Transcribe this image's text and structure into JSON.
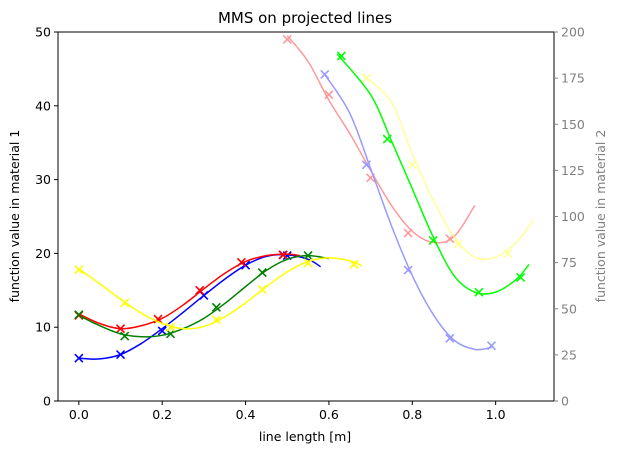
{
  "chart_data": {
    "type": "line",
    "title": "MMS on projected lines",
    "xlabel": "line length [m]",
    "ylabel_left": "function value in material 1",
    "ylabel_right": "function value in material 2",
    "xlim": [
      -0.05,
      1.14
    ],
    "ylim_left": [
      0,
      50
    ],
    "ylim_right": [
      0,
      200
    ],
    "x_ticks": [
      "0.0",
      "0.2",
      "0.4",
      "0.6",
      "0.8",
      "1.0"
    ],
    "y_ticks_left": [
      "0",
      "10",
      "20",
      "30",
      "40",
      "50"
    ],
    "y_ticks_right": [
      "0",
      "25",
      "50",
      "75",
      "100",
      "125",
      "150",
      "175",
      "200"
    ],
    "grid": false,
    "series": [
      {
        "axis": "left",
        "color": "#0000ff",
        "line": [
          [
            0,
            5.8
          ],
          [
            0.05,
            5.7
          ],
          [
            0.1,
            6.3
          ],
          [
            0.15,
            7.8
          ],
          [
            0.2,
            9.8
          ],
          [
            0.25,
            12.0
          ],
          [
            0.3,
            14.3
          ],
          [
            0.35,
            16.5
          ],
          [
            0.4,
            18.4
          ],
          [
            0.45,
            19.6
          ],
          [
            0.5,
            19.8
          ],
          [
            0.55,
            19.2
          ],
          [
            0.58,
            18.2
          ]
        ],
        "markers": [
          [
            0.0,
            5.8
          ],
          [
            0.1,
            6.3
          ],
          [
            0.2,
            9.5
          ],
          [
            0.3,
            14.3
          ],
          [
            0.4,
            18.4
          ],
          [
            0.49,
            19.8
          ],
          [
            0.5,
            19.7
          ]
        ]
      },
      {
        "axis": "left",
        "color": "#ff0000",
        "line": [
          [
            0,
            11.8
          ],
          [
            0.05,
            10.5
          ],
          [
            0.1,
            9.8
          ],
          [
            0.15,
            10.2
          ],
          [
            0.2,
            11.2
          ],
          [
            0.25,
            13.0
          ],
          [
            0.3,
            15.2
          ],
          [
            0.35,
            17.3
          ],
          [
            0.4,
            18.9
          ],
          [
            0.45,
            19.7
          ],
          [
            0.5,
            19.9
          ],
          [
            0.53,
            19.7
          ]
        ],
        "markers": [
          [
            0.0,
            11.6
          ],
          [
            0.1,
            9.8
          ],
          [
            0.19,
            11.1
          ],
          [
            0.29,
            15.0
          ],
          [
            0.39,
            18.8
          ],
          [
            0.49,
            19.8
          ]
        ]
      },
      {
        "axis": "left",
        "color": "#008000",
        "line": [
          [
            0,
            11.6
          ],
          [
            0.05,
            10.2
          ],
          [
            0.1,
            9.1
          ],
          [
            0.15,
            8.7
          ],
          [
            0.2,
            8.9
          ],
          [
            0.25,
            9.8
          ],
          [
            0.3,
            11.2
          ],
          [
            0.35,
            13.2
          ],
          [
            0.4,
            15.5
          ],
          [
            0.45,
            17.7
          ],
          [
            0.5,
            19.2
          ],
          [
            0.55,
            19.7
          ],
          [
            0.6,
            19.3
          ]
        ],
        "markers": [
          [
            0.0,
            11.7
          ],
          [
            0.11,
            8.8
          ],
          [
            0.22,
            9.1
          ],
          [
            0.33,
            12.7
          ],
          [
            0.44,
            17.4
          ],
          [
            0.55,
            19.7
          ]
        ]
      },
      {
        "axis": "left",
        "color": "#ffff00",
        "line": [
          [
            0,
            17.9
          ],
          [
            0.05,
            15.9
          ],
          [
            0.1,
            13.8
          ],
          [
            0.15,
            11.9
          ],
          [
            0.2,
            10.5
          ],
          [
            0.25,
            9.8
          ],
          [
            0.3,
            10.1
          ],
          [
            0.35,
            11.4
          ],
          [
            0.4,
            13.3
          ],
          [
            0.45,
            15.5
          ],
          [
            0.5,
            17.5
          ],
          [
            0.55,
            18.9
          ],
          [
            0.6,
            19.4
          ],
          [
            0.65,
            19.0
          ],
          [
            0.68,
            18.3
          ]
        ],
        "markers": [
          [
            0.0,
            17.8
          ],
          [
            0.11,
            13.3
          ],
          [
            0.22,
            10.0
          ],
          [
            0.33,
            11.0
          ],
          [
            0.44,
            15.1
          ],
          [
            0.55,
            18.7
          ],
          [
            0.66,
            18.5
          ]
        ]
      },
      {
        "axis": "right",
        "color": "#ff9999",
        "line": [
          [
            0.5,
            198
          ],
          [
            0.55,
            184
          ],
          [
            0.6,
            163
          ],
          [
            0.65,
            145
          ],
          [
            0.7,
            125
          ],
          [
            0.75,
            106
          ],
          [
            0.8,
            92
          ],
          [
            0.85,
            86
          ],
          [
            0.9,
            89
          ],
          [
            0.95,
            106
          ]
        ],
        "markers": [
          [
            0.5,
            196
          ],
          [
            0.6,
            166
          ],
          [
            0.7,
            121
          ],
          [
            0.79,
            91
          ],
          [
            0.89,
            88
          ]
        ]
      },
      {
        "axis": "right",
        "color": "#9999ff",
        "line": [
          [
            0.59,
            177
          ],
          [
            0.65,
            156
          ],
          [
            0.7,
            126
          ],
          [
            0.75,
            95
          ],
          [
            0.8,
            68
          ],
          [
            0.85,
            47
          ],
          [
            0.9,
            33
          ],
          [
            0.95,
            28
          ],
          [
            0.99,
            29
          ]
        ],
        "markers": [
          [
            0.59,
            177
          ],
          [
            0.69,
            128
          ],
          [
            0.79,
            71
          ],
          [
            0.89,
            34
          ],
          [
            0.99,
            30
          ]
        ]
      },
      {
        "axis": "right",
        "color": "#00ff00",
        "line": [
          [
            0.62,
            188
          ],
          [
            0.7,
            166
          ],
          [
            0.75,
            141
          ],
          [
            0.8,
            115
          ],
          [
            0.85,
            89
          ],
          [
            0.9,
            68
          ],
          [
            0.95,
            59
          ],
          [
            1.0,
            59
          ],
          [
            1.05,
            66
          ],
          [
            1.08,
            74
          ]
        ],
        "markers": [
          [
            0.63,
            187
          ],
          [
            0.74,
            142
          ],
          [
            0.85,
            87
          ],
          [
            0.96,
            59
          ],
          [
            1.06,
            67
          ]
        ]
      },
      {
        "axis": "right",
        "color": "#ffff99",
        "line": [
          [
            0.68,
            177
          ],
          [
            0.75,
            162
          ],
          [
            0.8,
            134
          ],
          [
            0.85,
            109
          ],
          [
            0.9,
            89
          ],
          [
            0.95,
            78
          ],
          [
            1.0,
            78
          ],
          [
            1.05,
            86
          ],
          [
            1.09,
            98
          ]
        ],
        "markers": [
          [
            0.69,
            175
          ],
          [
            0.8,
            128
          ],
          [
            0.91,
            85
          ],
          [
            1.03,
            80
          ]
        ]
      }
    ]
  }
}
